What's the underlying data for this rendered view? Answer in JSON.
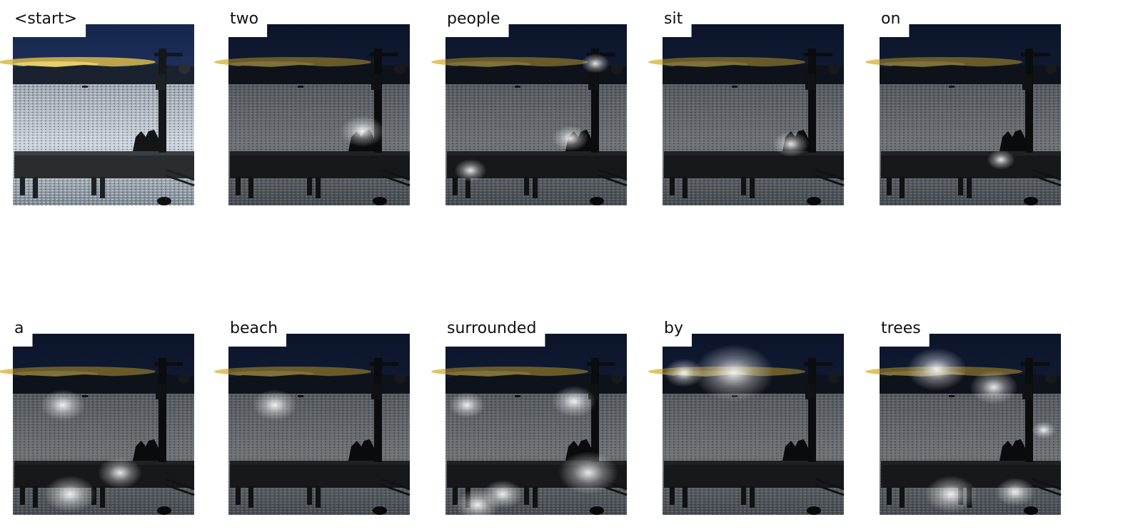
{
  "words": [
    "<start>",
    "two",
    "people",
    "sit",
    "on",
    "a",
    "beach",
    "surrounded",
    "by",
    "trees"
  ]
}
